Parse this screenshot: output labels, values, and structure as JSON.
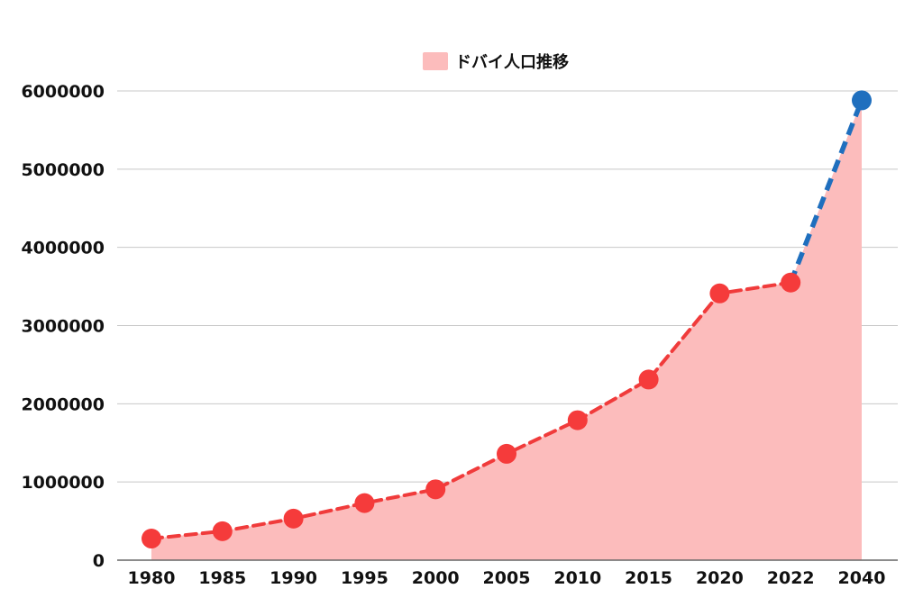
{
  "chart_data": {
    "type": "area",
    "categories": [
      "1980",
      "1985",
      "1990",
      "1995",
      "2000",
      "2005",
      "2010",
      "2015",
      "2020",
      "2022",
      "2040"
    ],
    "series": [
      {
        "name": "ドバイ人口推移",
        "values": [
          276000,
          370000,
          531000,
          730000,
          906000,
          1360000,
          1790000,
          2310000,
          3411000,
          3550000,
          5880000
        ]
      }
    ],
    "projection_from_index": 9,
    "ylim": [
      0,
      6000000
    ],
    "yticks": [
      "0",
      "1000000",
      "2000000",
      "3000000",
      "4000000",
      "5000000",
      "6000000"
    ],
    "grid": true,
    "legend_position": "top-center",
    "colors": {
      "area_fill": "#fcbcbc",
      "line": "#f03b3b",
      "marker": "#f53b3b",
      "projection_line": "#1f6fbe",
      "projection_marker": "#1f6fbe",
      "grid": "#c8c8c8",
      "axis": "#666666"
    },
    "title": "",
    "xlabel": "",
    "ylabel": ""
  }
}
